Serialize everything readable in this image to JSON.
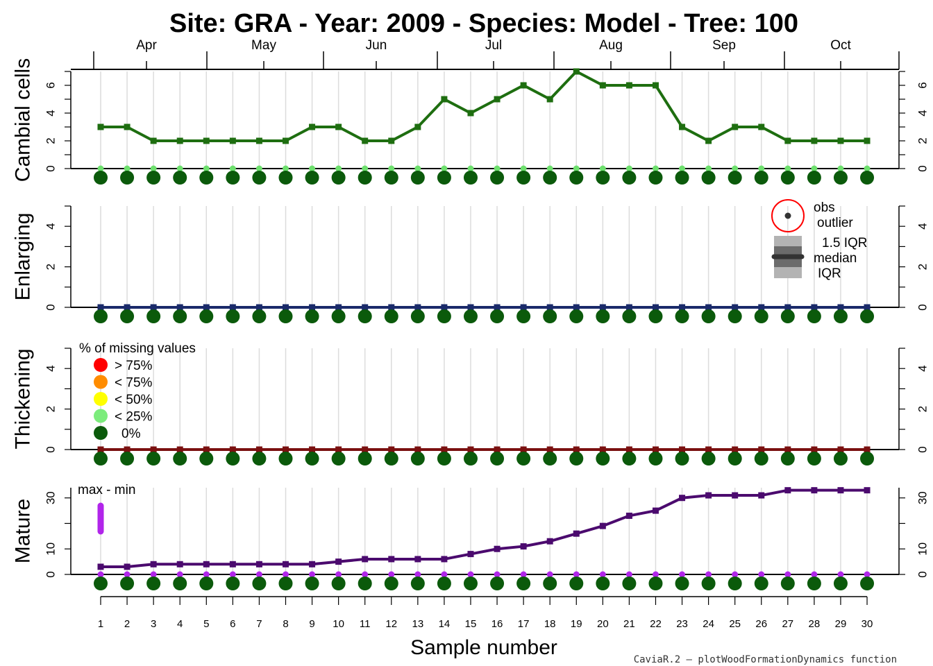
{
  "title": "Site: GRA - Year: 2009 - Species: Model - Tree: 100",
  "xlabel": "Sample number",
  "credit": "CaviaR.2 — plotWoodFormationDynamics function",
  "months": [
    "Apr",
    "May",
    "Jun",
    "Jul",
    "Aug",
    "Sep",
    "Oct"
  ],
  "missing_legend": {
    "title": "% of missing values",
    "items": [
      {
        "label": "> 75%",
        "color": "#ff0000"
      },
      {
        "label": "< 75%",
        "color": "#ff8c00"
      },
      {
        "label": "< 50%",
        "color": "#ffff00"
      },
      {
        "label": "< 25%",
        "color": "#7cec7c"
      },
      {
        "label": "0%",
        "color": "#0b5a0b"
      }
    ]
  },
  "box_legend": {
    "obs": "obs",
    "outlier": "outlier",
    "iqr15": "1.5 IQR",
    "median": "median",
    "iqr": "IQR"
  },
  "range_legend": {
    "label": "max - min",
    "color": "#b125ea"
  },
  "chart_data": [
    {
      "type": "line",
      "ylabel": "Cambial cells",
      "ylim": [
        0,
        7
      ],
      "yticks": [
        0,
        2,
        4,
        6
      ],
      "color": "#1e6e10",
      "zero_color": "#6ee06e",
      "x": [
        1,
        2,
        3,
        4,
        5,
        6,
        7,
        8,
        9,
        10,
        11,
        12,
        13,
        14,
        15,
        16,
        17,
        18,
        19,
        20,
        21,
        22,
        23,
        24,
        25,
        26,
        27,
        28,
        29,
        30
      ],
      "values": [
        3,
        3,
        2,
        2,
        2,
        2,
        2,
        2,
        3,
        3,
        2,
        2,
        3,
        5,
        4,
        5,
        6,
        5,
        7,
        6,
        6,
        6,
        3,
        2,
        3,
        3,
        2,
        2,
        2,
        2
      ]
    },
    {
      "type": "line",
      "ylabel": "Enlarging",
      "ylim": [
        0,
        5
      ],
      "yticks": [
        0,
        2,
        4
      ],
      "color": "#1a2a6a",
      "zero_color": "#1a2a6a",
      "x": [
        1,
        2,
        3,
        4,
        5,
        6,
        7,
        8,
        9,
        10,
        11,
        12,
        13,
        14,
        15,
        16,
        17,
        18,
        19,
        20,
        21,
        22,
        23,
        24,
        25,
        26,
        27,
        28,
        29,
        30
      ],
      "values": [
        0,
        0,
        0,
        0,
        0,
        0,
        0,
        0,
        0,
        0,
        0,
        0,
        0,
        0,
        0,
        0,
        0,
        0,
        0,
        0,
        0,
        0,
        0,
        0,
        0,
        0,
        0,
        0,
        0,
        0
      ]
    },
    {
      "type": "line",
      "ylabel": "Thickening",
      "ylim": [
        0,
        5
      ],
      "yticks": [
        0,
        2,
        4
      ],
      "color": "#7a1010",
      "zero_color": "#7a1010",
      "x": [
        1,
        2,
        3,
        4,
        5,
        6,
        7,
        8,
        9,
        10,
        11,
        12,
        13,
        14,
        15,
        16,
        17,
        18,
        19,
        20,
        21,
        22,
        23,
        24,
        25,
        26,
        27,
        28,
        29,
        30
      ],
      "values": [
        0,
        0,
        0,
        0,
        0,
        0,
        0,
        0,
        0,
        0,
        0,
        0,
        0,
        0,
        0,
        0,
        0,
        0,
        0,
        0,
        0,
        0,
        0,
        0,
        0,
        0,
        0,
        0,
        0,
        0
      ]
    },
    {
      "type": "line",
      "ylabel": "Mature",
      "ylim": [
        0,
        34
      ],
      "yticks": [
        0,
        10,
        30
      ],
      "color": "#4b0a6e",
      "zero_color": "#b125ea",
      "x": [
        1,
        2,
        3,
        4,
        5,
        6,
        7,
        8,
        9,
        10,
        11,
        12,
        13,
        14,
        15,
        16,
        17,
        18,
        19,
        20,
        21,
        22,
        23,
        24,
        25,
        26,
        27,
        28,
        29,
        30
      ],
      "values": [
        3,
        3,
        4,
        4,
        4,
        4,
        4,
        4,
        4,
        5,
        6,
        6,
        6,
        6,
        8,
        10,
        11,
        13,
        16,
        19,
        23,
        25,
        30,
        31,
        31,
        31,
        33,
        33,
        33,
        33
      ]
    }
  ]
}
